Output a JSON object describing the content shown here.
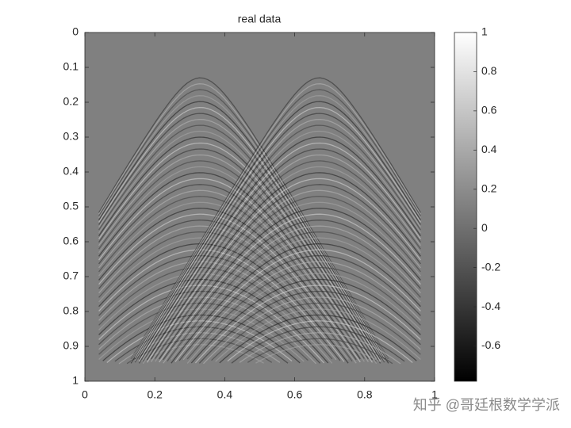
{
  "chart_data": {
    "type": "image",
    "title": "real data",
    "colormap": "gray",
    "xlim": [
      0,
      1
    ],
    "xticks": [
      0,
      0.2,
      0.4,
      0.6,
      0.8,
      1
    ],
    "ylim": [
      1,
      0
    ],
    "yticks": [
      0,
      0.1,
      0.2,
      0.3,
      0.4,
      0.5,
      0.6,
      0.7,
      0.8,
      0.9,
      1
    ],
    "clim": [
      -0.78,
      1
    ],
    "cticks": [
      -0.6,
      -0.4,
      -0.2,
      0,
      0.2,
      0.4,
      0.6,
      0.8,
      1
    ]
  },
  "watermark": "知乎 @哥廷根数学学派"
}
